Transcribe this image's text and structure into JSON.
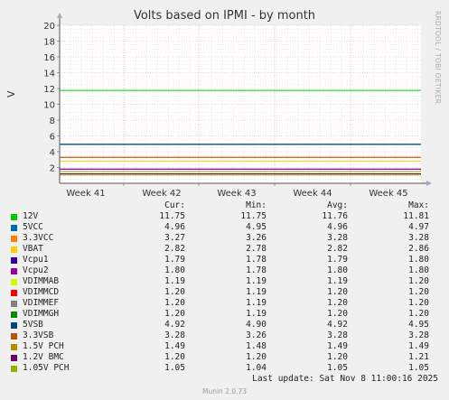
{
  "title": "Volts based on IPMI - by month",
  "side_text": "RRDTOOL / TOBI OETIKER",
  "ylabel": "V",
  "legend_headers": {
    "cur": "Cur:",
    "min": "Min:",
    "avg": "Avg:",
    "max": "Max:"
  },
  "last_update": "Last update:  Sat Nov  8 11:00:16 2025",
  "footer": "Munin 2.0.73",
  "chart_data": {
    "type": "line",
    "title": "Volts based on IPMI - by month",
    "ylabel": "V",
    "xlabel": "",
    "ylim": [
      0,
      20
    ],
    "yticks": [
      2,
      4,
      6,
      8,
      10,
      12,
      14,
      16,
      18,
      20
    ],
    "x_ticks": [
      "Week 41",
      "Week 42",
      "Week 43",
      "Week 44",
      "Week 45"
    ],
    "grid": true,
    "series": [
      {
        "name": "12V",
        "color": "#00cc00",
        "cur": "11.75",
        "min": "11.75",
        "avg": "11.76",
        "max": "11.81",
        "value": 11.76
      },
      {
        "name": "5VCC",
        "color": "#0066b3",
        "cur": "4.96",
        "min": "4.95",
        "avg": "4.96",
        "max": "4.97",
        "value": 4.96
      },
      {
        "name": "3.3VCC",
        "color": "#ff8000",
        "cur": "3.27",
        "min": "3.26",
        "avg": "3.28",
        "max": "3.28",
        "value": 3.28
      },
      {
        "name": "VBAT",
        "color": "#ffcc00",
        "cur": "2.82",
        "min": "2.78",
        "avg": "2.82",
        "max": "2.86",
        "value": 2.82
      },
      {
        "name": "Vcpu1",
        "color": "#330099",
        "cur": "1.79",
        "min": "1.78",
        "avg": "1.79",
        "max": "1.80",
        "value": 1.79
      },
      {
        "name": "Vcpu2",
        "color": "#990099",
        "cur": "1.80",
        "min": "1.78",
        "avg": "1.80",
        "max": "1.80",
        "value": 1.8
      },
      {
        "name": "VDIMMAB",
        "color": "#ccff00",
        "cur": "1.19",
        "min": "1.19",
        "avg": "1.19",
        "max": "1.20",
        "value": 1.19
      },
      {
        "name": "VDIMMCD",
        "color": "#ff0000",
        "cur": "1.20",
        "min": "1.19",
        "avg": "1.20",
        "max": "1.20",
        "value": 1.2
      },
      {
        "name": "VDIMMEF",
        "color": "#808080",
        "cur": "1.20",
        "min": "1.19",
        "avg": "1.20",
        "max": "1.20",
        "value": 1.2
      },
      {
        "name": "VDIMMGH",
        "color": "#008f00",
        "cur": "1.20",
        "min": "1.19",
        "avg": "1.20",
        "max": "1.20",
        "value": 1.2
      },
      {
        "name": "5VSB",
        "color": "#00487d",
        "cur": "4.92",
        "min": "4.90",
        "avg": "4.92",
        "max": "4.95",
        "value": 4.92
      },
      {
        "name": "3.3VSB",
        "color": "#b35a00",
        "cur": "3.28",
        "min": "3.26",
        "avg": "3.28",
        "max": "3.28",
        "value": 3.28
      },
      {
        "name": "1.5V PCH",
        "color": "#b38f00",
        "cur": "1.49",
        "min": "1.48",
        "avg": "1.49",
        "max": "1.49",
        "value": 1.49
      },
      {
        "name": "1.2V BMC",
        "color": "#6b006b",
        "cur": "1.20",
        "min": "1.20",
        "avg": "1.20",
        "max": "1.21",
        "value": 1.2
      },
      {
        "name": "1.05V PCH",
        "color": "#8fb300",
        "cur": "1.05",
        "min": "1.04",
        "avg": "1.05",
        "max": "1.05",
        "value": 1.05
      }
    ]
  }
}
